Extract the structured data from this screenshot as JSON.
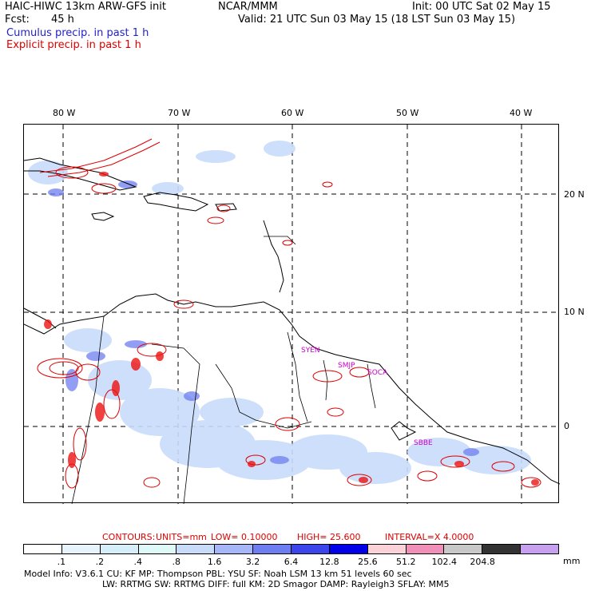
{
  "header": {
    "model_title": "HAIC-HIWC 13km ARW-GFS init",
    "org": "NCAR/MMM",
    "init": "Init: 00 UTC Sat 02 May 15",
    "fcst_label": "Fcst:",
    "fcst_value": "45 h",
    "valid": "Valid: 21 UTC Sun 03 May 15 (18 LST Sun 03 May 15)",
    "line_cumulus": "Cumulus precip. in past 1 h",
    "line_explicit": "Explicit precip. in past 1 h"
  },
  "map": {
    "lon_labels": [
      "80 W",
      "70 W",
      "60 W",
      "50 W",
      "40 W"
    ],
    "lat_labels": [
      "20 N",
      "10 N",
      "0"
    ],
    "stations": [
      "SYEN",
      "SMJP",
      "SOCA",
      "SBBE"
    ],
    "colors": {
      "coast": "#000000",
      "cumulus": "#4a6ae8",
      "explicit": "#dd0000",
      "station": "#cc00cc"
    }
  },
  "contours": {
    "label": "CONTOURS:",
    "units": "UNITS=mm",
    "low": "LOW= 0.10000",
    "high": "HIGH= 25.600",
    "interval": "INTERVAL=X 4.0000"
  },
  "legend": {
    "unit": "mm",
    "ticks": [
      ".1",
      ".2",
      ".4",
      ".8",
      "1.6",
      "3.2",
      "6.4",
      "12.8",
      "25.6",
      "51.2",
      "102.4",
      "204.8"
    ],
    "colors": [
      "#ffffff",
      "#e8f4fb",
      "#d6eefa",
      "#dff8f8",
      "#c8dcfa",
      "#a6b6f8",
      "#6e7ef0",
      "#3c44ec",
      "#0000e8",
      "#fad2d8",
      "#f090b8",
      "#c8c8c8",
      "#333333",
      "#c8a0f0"
    ]
  },
  "model_info": {
    "line1": "Model Info: V3.6.1     CU: KF       MP: Thompson     PBL: YSU        SF: Noah LSM     13 km    51 levels   60 sec",
    "line2": "LW: RRTMG    SW: RRTMG   DIFF: full    KM: 2D Smagor  DAMP: Rayleigh3   SFLAY: MM5"
  }
}
